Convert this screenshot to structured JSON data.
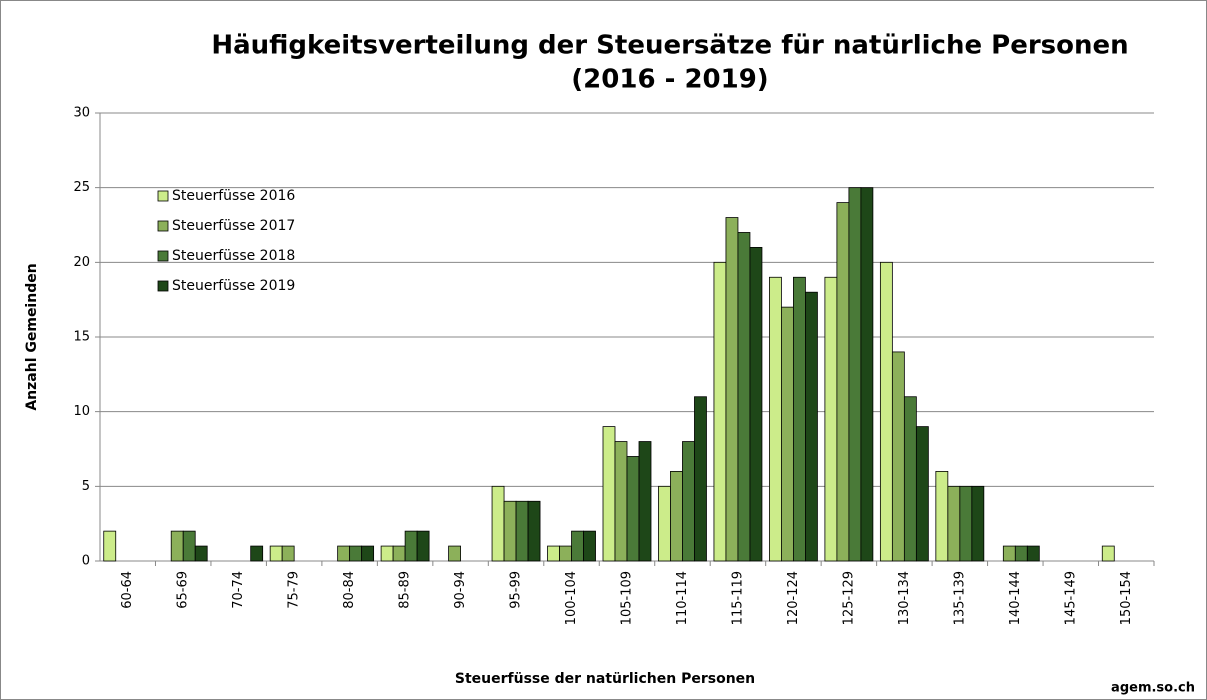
{
  "chart_data": {
    "type": "bar",
    "title": "Häufigkeitsverteilung der Steuersätze für natürliche Personen",
    "subtitle": "(2016 - 2019)",
    "x_label": "Steuerfüsse der natürlichen Personen",
    "y_label": "Anzahl Gemeinden",
    "annotation": "agem.so.ch",
    "categories": [
      "60-64",
      "65-69",
      "70-74",
      "75-79",
      "80-84",
      "85-89",
      "90-94",
      "95-99",
      "100-104",
      "105-109",
      "110-114",
      "115-119",
      "120-124",
      "125-129",
      "130-134",
      "135-139",
      "140-144",
      "145-149",
      "150-154"
    ],
    "series": [
      {
        "name": "Steuerfüsse 2016",
        "color": "#ccec8a",
        "values": [
          2,
          0,
          0,
          1,
          0,
          1,
          0,
          5,
          1,
          9,
          5,
          20,
          19,
          19,
          20,
          6,
          0,
          0,
          1
        ]
      },
      {
        "name": "Steuerfüsse 2017",
        "color": "#8cb05a",
        "values": [
          0,
          2,
          0,
          1,
          1,
          1,
          1,
          4,
          1,
          8,
          6,
          23,
          17,
          24,
          14,
          5,
          1,
          0,
          0
        ]
      },
      {
        "name": "Steuerfüsse 2018",
        "color": "#4a7a38",
        "values": [
          0,
          2,
          0,
          0,
          1,
          2,
          0,
          4,
          2,
          7,
          8,
          22,
          19,
          25,
          11,
          5,
          1,
          0,
          0
        ]
      },
      {
        "name": "Steuerfüsse 2019",
        "color": "#1e4718",
        "values": [
          0,
          1,
          1,
          0,
          1,
          2,
          0,
          4,
          2,
          8,
          11,
          21,
          18,
          25,
          9,
          5,
          1,
          0,
          0
        ]
      }
    ],
    "ylim": [
      0,
      30
    ],
    "yticks": [
      0,
      5,
      10,
      15,
      20,
      25,
      30
    ],
    "grid": true,
    "legend": "upper left"
  }
}
